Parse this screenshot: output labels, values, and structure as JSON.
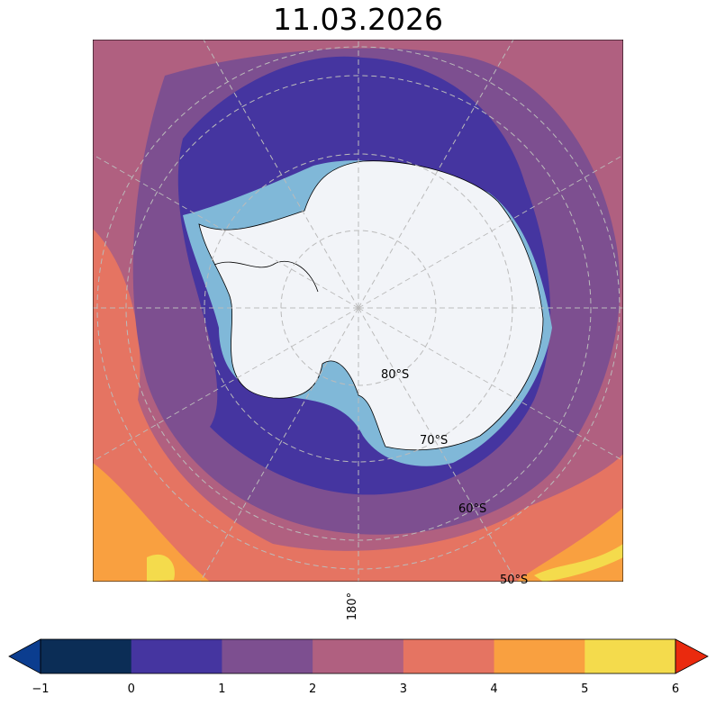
{
  "title": "11.03.2026",
  "map": {
    "projection": "south-polar-stereographic",
    "latitude_labels": [
      "80°S",
      "70°S",
      "60°S",
      "50°S"
    ],
    "longitude_labels": [
      "180°"
    ],
    "gridlines": true
  },
  "colorbar": {
    "ticks": [
      "−1",
      "0",
      "1",
      "2",
      "3",
      "4",
      "5",
      "6"
    ],
    "bins": [
      {
        "range": [
          -1,
          0
        ],
        "color": "#0b2d56"
      },
      {
        "range": [
          0,
          1
        ],
        "color": "#4535a0"
      },
      {
        "range": [
          1,
          2
        ],
        "color": "#7d4f90"
      },
      {
        "range": [
          2,
          3
        ],
        "color": "#b06080"
      },
      {
        "range": [
          3,
          4
        ],
        "color": "#e57462"
      },
      {
        "range": [
          4,
          5
        ],
        "color": "#f9a040"
      },
      {
        "range": [
          5,
          6
        ],
        "color": "#f4db4c"
      }
    ],
    "under_color": "#0b3d8f",
    "over_color": "#ea2a0e",
    "extend": "both"
  },
  "colors": {
    "sea_ice": "#80b8d8",
    "land_ice": "#f2f4f8"
  }
}
